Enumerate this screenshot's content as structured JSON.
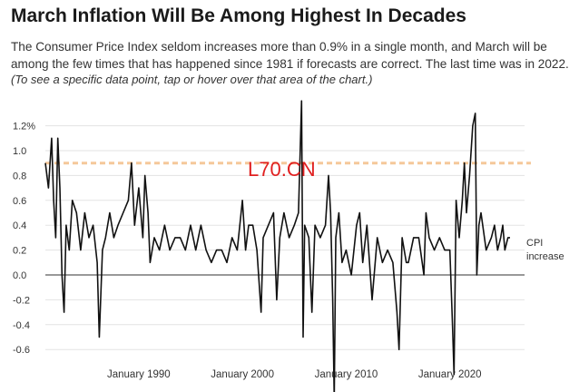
{
  "header": {
    "title": "March Inflation Will Be Among Highest In Decades",
    "subtitle": "The Consumer Price Index seldom increases more than 0.9% in a single month, and March will be among the few times that has happened since 1981 if forecasts are correct. The last time was in 2022.",
    "note": "(To see a specific data point, tap or hover over that area of the chart.)"
  },
  "watermark": "L70.CN",
  "chart_data": {
    "type": "line",
    "title": "March Inflation Will Be Among Highest In Decades",
    "ylabel": "",
    "xlabel": "",
    "ylim": [
      -0.7,
      1.3
    ],
    "xlim": [
      1981.0,
      2026.5
    ],
    "y_ticks": [
      {
        "value": 1.2,
        "label": "1.2%"
      },
      {
        "value": 1.0,
        "label": "1.0"
      },
      {
        "value": 0.8,
        "label": "0.8"
      },
      {
        "value": 0.6,
        "label": "0.6"
      },
      {
        "value": 0.4,
        "label": "0.4"
      },
      {
        "value": 0.2,
        "label": "0.2"
      },
      {
        "value": 0.0,
        "label": "0.0"
      },
      {
        "value": -0.2,
        "label": "-0.2"
      },
      {
        "value": -0.4,
        "label": "-0.4"
      },
      {
        "value": -0.6,
        "label": "-0.6"
      }
    ],
    "x_ticks": [
      {
        "value": 1990,
        "label": "January 1990"
      },
      {
        "value": 2000,
        "label": "January 2000"
      },
      {
        "value": 2010,
        "label": "January 2010"
      },
      {
        "value": 2020,
        "label": "January 2020"
      }
    ],
    "reference_line": {
      "value": 0.9,
      "color": "#f5c89a"
    },
    "series_label": "CPI increase",
    "colors": {
      "line": "#111111",
      "grid": "#e3e3e3",
      "zero": "#333333"
    },
    "series": [
      {
        "name": "CPI increase",
        "x": [
          1981.0,
          1981.3,
          1981.6,
          1981.8,
          1982.0,
          1982.2,
          1982.4,
          1982.6,
          1982.8,
          1983.0,
          1983.3,
          1983.6,
          1984.0,
          1984.4,
          1984.8,
          1985.2,
          1985.6,
          1986.0,
          1986.2,
          1986.5,
          1986.8,
          1987.2,
          1987.6,
          1988.0,
          1988.5,
          1989.0,
          1989.3,
          1989.6,
          1990.0,
          1990.4,
          1990.6,
          1990.9,
          1991.1,
          1991.5,
          1992.0,
          1992.5,
          1993.0,
          1993.5,
          1994.0,
          1994.5,
          1995.0,
          1995.5,
          1996.0,
          1996.5,
          1997.0,
          1997.5,
          1998.0,
          1998.5,
          1999.0,
          1999.5,
          2000.0,
          2000.3,
          2000.6,
          2001.0,
          2001.4,
          2001.8,
          2002.0,
          2002.5,
          2003.0,
          2003.3,
          2003.6,
          2004.0,
          2004.5,
          2005.0,
          2005.4,
          2005.7,
          2005.85,
          2006.0,
          2006.4,
          2006.7,
          2007.0,
          2007.5,
          2008.0,
          2008.3,
          2008.5,
          2008.7,
          2008.85,
          2009.0,
          2009.3,
          2009.6,
          2010.0,
          2010.5,
          2011.0,
          2011.3,
          2011.6,
          2012.0,
          2012.5,
          2013.0,
          2013.5,
          2014.0,
          2014.5,
          2014.9,
          2015.1,
          2015.4,
          2015.8,
          2016.0,
          2016.5,
          2017.0,
          2017.5,
          2017.7,
          2018.0,
          2018.5,
          2019.0,
          2019.5,
          2020.0,
          2020.25,
          2020.4,
          2020.6,
          2020.9,
          2021.2,
          2021.4,
          2021.6,
          2021.9,
          2022.2,
          2022.45,
          2022.6,
          2022.8,
          2023.0,
          2023.5,
          2024.0,
          2024.3,
          2024.6,
          2024.9,
          2025.1,
          2025.3,
          2025.6,
          2025.8
        ],
        "y": [
          0.9,
          0.7,
          1.1,
          0.6,
          0.3,
          1.1,
          0.7,
          0.0,
          -0.3,
          0.4,
          0.2,
          0.6,
          0.5,
          0.2,
          0.5,
          0.3,
          0.4,
          0.1,
          -0.5,
          0.2,
          0.3,
          0.5,
          0.3,
          0.4,
          0.5,
          0.6,
          0.9,
          0.4,
          0.7,
          0.3,
          0.8,
          0.5,
          0.1,
          0.3,
          0.2,
          0.4,
          0.2,
          0.3,
          0.3,
          0.2,
          0.4,
          0.2,
          0.4,
          0.2,
          0.1,
          0.2,
          0.2,
          0.1,
          0.3,
          0.2,
          0.6,
          0.2,
          0.4,
          0.4,
          0.2,
          -0.3,
          0.3,
          0.4,
          0.5,
          -0.2,
          0.3,
          0.5,
          0.3,
          0.4,
          0.5,
          1.4,
          -0.5,
          0.4,
          0.3,
          -0.3,
          0.4,
          0.3,
          0.4,
          0.8,
          0.5,
          -0.2,
          -1.0,
          0.3,
          0.5,
          0.1,
          0.2,
          0.0,
          0.4,
          0.5,
          0.1,
          0.4,
          -0.2,
          0.3,
          0.1,
          0.2,
          0.1,
          -0.3,
          -0.6,
          0.3,
          0.1,
          0.1,
          0.3,
          0.3,
          0.0,
          0.5,
          0.3,
          0.2,
          0.3,
          0.2,
          0.2,
          -0.4,
          -0.8,
          0.6,
          0.3,
          0.6,
          0.9,
          0.5,
          0.8,
          1.2,
          1.3,
          0.0,
          0.4,
          0.5,
          0.2,
          0.3,
          0.4,
          0.2,
          0.3,
          0.4,
          0.2,
          0.3,
          0.3
        ]
      }
    ]
  }
}
